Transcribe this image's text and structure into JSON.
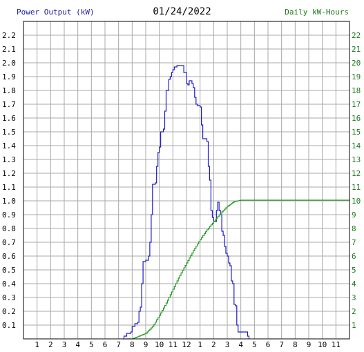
{
  "chart_data": {
    "type": "line",
    "title": "01/24/2022",
    "left_axis_label": "Power Output (kW)",
    "right_axis_label": "Daily kW-Hours",
    "x_ticks": [
      "1",
      "2",
      "3",
      "4",
      "5",
      "6",
      "7",
      "8",
      "9",
      "10",
      "11",
      "12",
      "1",
      "2",
      "3",
      "4",
      "5",
      "6",
      "7",
      "8",
      "9",
      "10",
      "11"
    ],
    "y_left_ticks": [
      "0.1",
      "0.2",
      "0.3",
      "0.4",
      "0.5",
      "0.6",
      "0.7",
      "0.8",
      "0.9",
      "1.0",
      "1.1",
      "1.2",
      "1.3",
      "1.4",
      "1.5",
      "1.6",
      "1.7",
      "1.8",
      "1.9",
      "2.0",
      "2.1",
      "2.2"
    ],
    "y_right_ticks": [
      "1",
      "2",
      "3",
      "4",
      "5",
      "6",
      "7",
      "8",
      "9",
      "10",
      "11",
      "12",
      "13",
      "14",
      "15",
      "16",
      "17",
      "18",
      "19",
      "20",
      "21",
      "22"
    ],
    "x_range_hours": [
      0,
      24
    ],
    "y_left_range": [
      0,
      2.3
    ],
    "y_right_range": [
      0,
      23
    ],
    "grid": true,
    "colors": {
      "power": "#1a1acc",
      "energy": "#229922",
      "grid": "#a8a8a8",
      "left_label": "#1a1a9c",
      "right_label": "#1b7a1b"
    },
    "series": [
      {
        "axis": "left",
        "color": "#1a1acc",
        "points": [
          [
            7.3,
            0
          ],
          [
            7.4,
            0.02
          ],
          [
            7.6,
            0.04
          ],
          [
            7.9,
            0.05
          ],
          [
            8.0,
            0.09
          ],
          [
            8.2,
            0.11
          ],
          [
            8.4,
            0.12
          ],
          [
            8.5,
            0.2
          ],
          [
            8.6,
            0.23
          ],
          [
            8.7,
            0.4
          ],
          [
            8.8,
            0.56
          ],
          [
            9.0,
            0.57
          ],
          [
            9.2,
            0.6
          ],
          [
            9.3,
            0.7
          ],
          [
            9.4,
            0.9
          ],
          [
            9.5,
            1.12
          ],
          [
            9.7,
            1.13
          ],
          [
            9.8,
            1.25
          ],
          [
            9.9,
            1.35
          ],
          [
            10.0,
            1.39
          ],
          [
            10.1,
            1.5
          ],
          [
            10.3,
            1.52
          ],
          [
            10.4,
            1.65
          ],
          [
            10.5,
            1.8
          ],
          [
            10.6,
            1.8
          ],
          [
            10.7,
            1.88
          ],
          [
            10.8,
            1.9
          ],
          [
            10.9,
            1.93
          ],
          [
            11.0,
            1.95
          ],
          [
            11.1,
            1.97
          ],
          [
            11.3,
            1.98
          ],
          [
            11.5,
            1.98
          ],
          [
            11.7,
            1.98
          ],
          [
            11.8,
            1.93
          ],
          [
            12.0,
            1.85
          ],
          [
            12.1,
            1.84
          ],
          [
            12.2,
            1.87
          ],
          [
            12.3,
            1.87
          ],
          [
            12.4,
            1.85
          ],
          [
            12.5,
            1.82
          ],
          [
            12.6,
            1.75
          ],
          [
            12.7,
            1.7
          ],
          [
            12.8,
            1.69
          ],
          [
            13.0,
            1.68
          ],
          [
            13.1,
            1.55
          ],
          [
            13.2,
            1.45
          ],
          [
            13.3,
            1.45
          ],
          [
            13.5,
            1.43
          ],
          [
            13.6,
            1.25
          ],
          [
            13.7,
            1.15
          ],
          [
            13.8,
            0.93
          ],
          [
            13.9,
            0.88
          ],
          [
            14.0,
            0.85
          ],
          [
            14.1,
            0.85
          ],
          [
            14.2,
            0.93
          ],
          [
            14.3,
            0.99
          ],
          [
            14.4,
            0.93
          ],
          [
            14.5,
            0.9
          ],
          [
            14.6,
            0.78
          ],
          [
            14.7,
            0.75
          ],
          [
            14.8,
            0.67
          ],
          [
            14.9,
            0.62
          ],
          [
            15.0,
            0.6
          ],
          [
            15.1,
            0.55
          ],
          [
            15.2,
            0.53
          ],
          [
            15.3,
            0.42
          ],
          [
            15.4,
            0.4
          ],
          [
            15.5,
            0.25
          ],
          [
            15.6,
            0.24
          ],
          [
            15.7,
            0.1
          ],
          [
            15.8,
            0.05
          ],
          [
            16.0,
            0.05
          ],
          [
            16.2,
            0.05
          ],
          [
            16.4,
            0.05
          ],
          [
            16.5,
            0.02
          ],
          [
            16.6,
            0
          ]
        ]
      },
      {
        "axis": "right",
        "color": "#229922",
        "points": [
          [
            7.5,
            0
          ],
          [
            8.0,
            0
          ],
          [
            8.5,
            0.2
          ],
          [
            9.0,
            0.4
          ],
          [
            9.5,
            0.9
          ],
          [
            10.0,
            1.7
          ],
          [
            10.5,
            2.6
          ],
          [
            11.0,
            3.6
          ],
          [
            11.5,
            4.6
          ],
          [
            12.0,
            5.5
          ],
          [
            12.5,
            6.4
          ],
          [
            13.0,
            7.2
          ],
          [
            13.5,
            7.9
          ],
          [
            14.0,
            8.5
          ],
          [
            14.5,
            9.1
          ],
          [
            15.0,
            9.6
          ],
          [
            15.5,
            9.95
          ],
          [
            16.0,
            10.05
          ],
          [
            16.5,
            10.05
          ],
          [
            24.0,
            10.05
          ]
        ]
      }
    ]
  }
}
